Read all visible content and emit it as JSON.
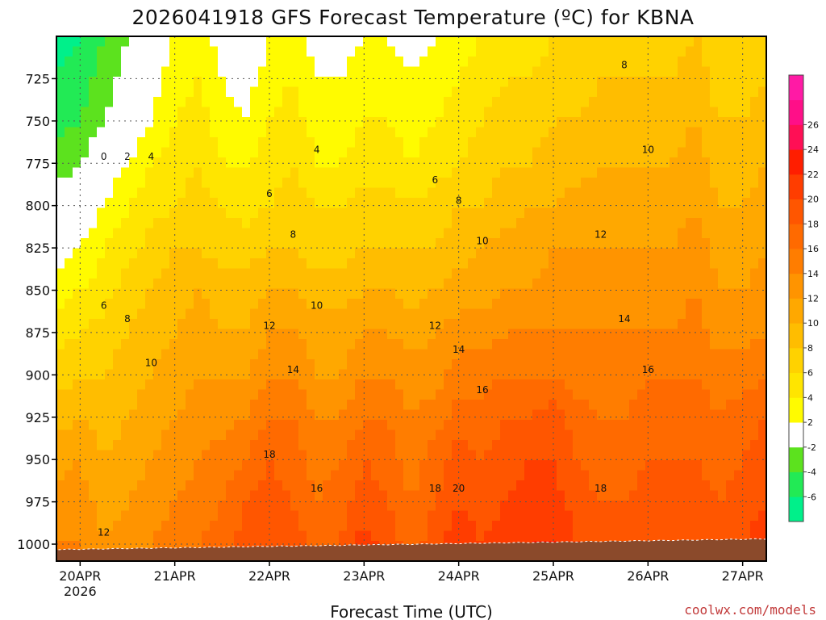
{
  "title": "2026041918 GFS Forecast Temperature (ºC) for KBNA",
  "credit": "coolwx.com/models",
  "chart_data": {
    "type": "heatmap",
    "title": "2026041918 GFS Forecast Temperature (ºC) for KBNA",
    "xlabel": "Forecast Time (UTC)",
    "ylabel": "",
    "x_ticks": [
      {
        "hour": 6,
        "label": "20APR",
        "sub": "2026"
      },
      {
        "hour": 30,
        "label": "21APR",
        "sub": ""
      },
      {
        "hour": 54,
        "label": "22APR",
        "sub": ""
      },
      {
        "hour": 78,
        "label": "23APR",
        "sub": ""
      },
      {
        "hour": 102,
        "label": "24APR",
        "sub": ""
      },
      {
        "hour": 126,
        "label": "25APR",
        "sub": ""
      },
      {
        "hour": 150,
        "label": "26APR",
        "sub": ""
      },
      {
        "hour": 174,
        "label": "27APR",
        "sub": ""
      }
    ],
    "x_range_hours": [
      0,
      180
    ],
    "y_ticks": [
      725,
      750,
      775,
      800,
      825,
      850,
      875,
      900,
      925,
      950,
      975,
      1000
    ],
    "y_range_hPa": [
      700,
      1010
    ],
    "y_reversed": true,
    "colorbar": {
      "levels": [
        -8,
        -6,
        -4,
        -2,
        2,
        4,
        6,
        8,
        10,
        12,
        14,
        16,
        18,
        20,
        22,
        24,
        26,
        28
      ],
      "tick_labels": [
        "-6",
        "-4",
        "-2",
        "2",
        "4",
        "6",
        "8",
        "10",
        "12",
        "14",
        "16",
        "18",
        "20",
        "22",
        "24",
        "26"
      ],
      "colors": [
        "#00f08a",
        "#22ea55",
        "#5ce21e",
        "#ffffff",
        "#fffb00",
        "#ffe500",
        "#ffd200",
        "#ffbd00",
        "#ffa800",
        "#ff9400",
        "#ff7d00",
        "#ff6a00",
        "#ff5600",
        "#ff3d00",
        "#ff1e00",
        "#ff0f55",
        "#ff0f88",
        "#ff1aa5"
      ]
    },
    "temperature_c": {
      "hours": [
        0,
        6,
        12,
        18,
        24,
        30,
        36,
        42,
        48,
        54,
        60,
        66,
        72,
        78,
        84,
        90,
        96,
        102,
        108,
        114,
        120,
        126,
        132,
        138,
        144,
        150,
        156,
        162,
        168,
        174,
        180
      ],
      "levels_hPa": [
        700,
        725,
        750,
        775,
        800,
        825,
        850,
        875,
        900,
        925,
        950,
        975,
        1000
      ],
      "values": [
        [
          -7,
          -6,
          -4,
          -2,
          0,
          2,
          3,
          1,
          0,
          2,
          3,
          1,
          1,
          2,
          2,
          1,
          2,
          3,
          4,
          5,
          5,
          6,
          6,
          7,
          7,
          7,
          7,
          8,
          7,
          6,
          7
        ],
        [
          -6,
          -5,
          -3,
          -1,
          1,
          3,
          4,
          2,
          1,
          3,
          4,
          2,
          2,
          3,
          3,
          2,
          3,
          4,
          5,
          6,
          6,
          7,
          7,
          8,
          8,
          8,
          8,
          9,
          7,
          7,
          8
        ],
        [
          -5,
          -4,
          -2,
          0,
          2,
          4,
          5,
          3,
          2,
          4,
          5,
          3,
          3,
          4,
          4,
          3,
          4,
          5,
          6,
          7,
          7,
          8,
          8,
          9,
          9,
          9,
          9,
          10,
          8,
          8,
          9
        ],
        [
          -3,
          -2,
          0,
          2,
          4,
          5,
          6,
          4,
          4,
          5,
          6,
          4,
          4,
          5,
          5,
          4,
          5,
          6,
          7,
          8,
          8,
          9,
          9,
          10,
          10,
          10,
          10,
          11,
          9,
          9,
          10
        ],
        [
          -1,
          0,
          2,
          4,
          5,
          6,
          7,
          6,
          5,
          6,
          7,
          6,
          6,
          7,
          7,
          6,
          7,
          8,
          8,
          9,
          10,
          10,
          11,
          11,
          11,
          11,
          11,
          12,
          10,
          10,
          11
        ],
        [
          1,
          2,
          4,
          5,
          7,
          8,
          8,
          7,
          7,
          8,
          8,
          7,
          7,
          8,
          8,
          8,
          8,
          9,
          10,
          11,
          11,
          12,
          12,
          12,
          12,
          12,
          12,
          13,
          11,
          11,
          12
        ],
        [
          3,
          4,
          5,
          7,
          8,
          9,
          10,
          9,
          9,
          10,
          10,
          9,
          9,
          10,
          10,
          9,
          10,
          11,
          11,
          12,
          12,
          13,
          13,
          13,
          13,
          13,
          13,
          14,
          12,
          12,
          13
        ],
        [
          5,
          6,
          7,
          8,
          9,
          10,
          11,
          10,
          10,
          12,
          12,
          11,
          11,
          12,
          12,
          11,
          12,
          13,
          13,
          14,
          14,
          14,
          14,
          14,
          14,
          14,
          14,
          15,
          13,
          13,
          14
        ],
        [
          7,
          8,
          8,
          9,
          10,
          11,
          12,
          12,
          12,
          14,
          14,
          12,
          12,
          14,
          14,
          13,
          13,
          15,
          15,
          16,
          16,
          16,
          15,
          15,
          15,
          16,
          16,
          16,
          15,
          15,
          16
        ],
        [
          9,
          10,
          9,
          10,
          11,
          12,
          13,
          13,
          14,
          16,
          16,
          14,
          14,
          16,
          16,
          14,
          15,
          17,
          17,
          18,
          18,
          19,
          17,
          16,
          16,
          17,
          17,
          17,
          16,
          17,
          18
        ],
        [
          11,
          12,
          10,
          11,
          12,
          13,
          14,
          15,
          16,
          18,
          17,
          15,
          16,
          18,
          17,
          15,
          17,
          19,
          18,
          19,
          20,
          20,
          18,
          17,
          17,
          18,
          18,
          18,
          17,
          18,
          19
        ],
        [
          13,
          13,
          11,
          12,
          13,
          14,
          15,
          16,
          18,
          19,
          18,
          16,
          17,
          19,
          18,
          16,
          18,
          20,
          19,
          20,
          21,
          21,
          19,
          18,
          18,
          19,
          19,
          19,
          18,
          19,
          20
        ],
        [
          14,
          14,
          12,
          13,
          14,
          15,
          16,
          17,
          19,
          20,
          19,
          17,
          18,
          21,
          19,
          17,
          19,
          22,
          20,
          21,
          22,
          22,
          20,
          19,
          19,
          20,
          20,
          20,
          19,
          20,
          21
        ]
      ]
    },
    "contour_labels": [
      "0",
      "2",
      "4",
      "6",
      "8",
      "10",
      "12",
      "14",
      "16",
      "18",
      "20"
    ],
    "legend": "colorbar at right"
  }
}
